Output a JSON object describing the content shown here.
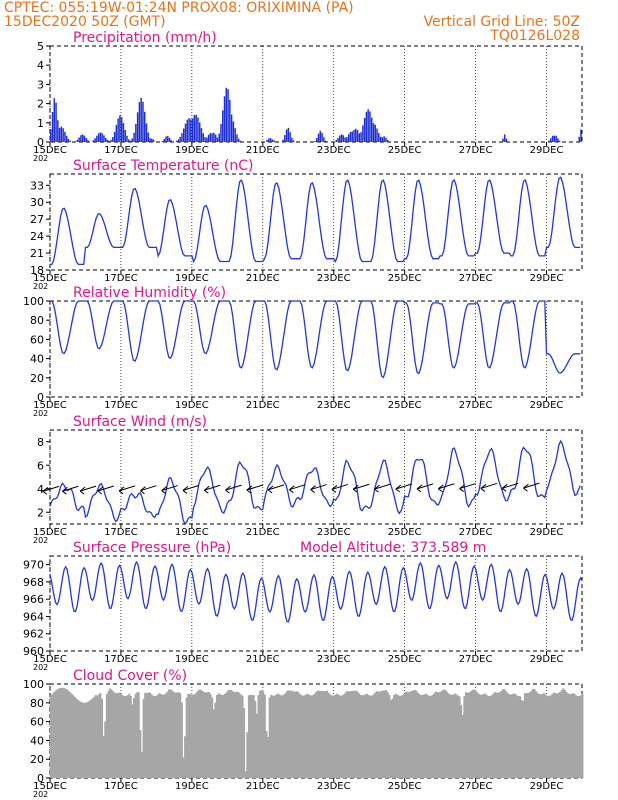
{
  "header": {
    "line1_left": "CPTEC:   055:19W-01:24N   PROX08: ORIXIMINA (PA)",
    "line2_left": "15DEC2020 50Z (GMT)",
    "line2_right": "Vertical Grid Line: 50Z",
    "line3_right": "TQ0126L028"
  },
  "colors": {
    "header": "#e8731a",
    "title": "#e0168c",
    "line": "#2437d6",
    "precip": "#1d2fd0",
    "cloud": "#a6a6a6",
    "wind_barb": "#000000"
  },
  "x_axis": {
    "ticks": [
      "15DEC",
      "17DEC",
      "19DEC",
      "21DEC",
      "23DEC",
      "25DEC",
      "27DEC",
      "29DEC"
    ],
    "tick_days": [
      0,
      2,
      4,
      6,
      8,
      10,
      12,
      14
    ],
    "year_fragment": "202",
    "total_days": 15
  },
  "chart_data": [
    {
      "id": "precip",
      "type": "bar",
      "title": "Precipitation (mm/h)",
      "ylim": [
        0,
        5
      ],
      "yticks": [
        "0",
        "1",
        "2",
        "3",
        "4",
        "5"
      ],
      "events": [
        {
          "day": 0.1,
          "peak": 2.9,
          "width": 0.15
        },
        {
          "day": 0.3,
          "peak": 0.8,
          "width": 0.25
        },
        {
          "day": 0.9,
          "peak": 0.4,
          "width": 0.2
        },
        {
          "day": 1.4,
          "peak": 0.5,
          "width": 0.25
        },
        {
          "day": 1.95,
          "peak": 1.4,
          "width": 0.25
        },
        {
          "day": 2.55,
          "peak": 2.3,
          "width": 0.25
        },
        {
          "day": 2.85,
          "peak": 0.3,
          "width": 0.1
        },
        {
          "day": 3.3,
          "peak": 0.4,
          "width": 0.15
        },
        {
          "day": 4.0,
          "peak": 2.0,
          "width": 0.35
        },
        {
          "day": 4.55,
          "peak": 0.8,
          "width": 0.2
        },
        {
          "day": 5.0,
          "peak": 3.4,
          "width": 0.25
        },
        {
          "day": 6.2,
          "peak": 0.3,
          "width": 0.15
        },
        {
          "day": 6.7,
          "peak": 0.9,
          "width": 0.15
        },
        {
          "day": 7.6,
          "peak": 0.6,
          "width": 0.15
        },
        {
          "day": 8.2,
          "peak": 0.4,
          "width": 0.2
        },
        {
          "day": 8.55,
          "peak": 1.0,
          "width": 0.25
        },
        {
          "day": 9.0,
          "peak": 2.1,
          "width": 0.3
        },
        {
          "day": 9.4,
          "peak": 0.3,
          "width": 0.15
        },
        {
          "day": 12.8,
          "peak": 0.4,
          "width": 0.08
        },
        {
          "day": 14.2,
          "peak": 0.6,
          "width": 0.15
        },
        {
          "day": 14.95,
          "peak": 0.7,
          "width": 0.08
        }
      ]
    },
    {
      "id": "temperature",
      "type": "line",
      "title": "Surface Temperature (nC)",
      "ylim": [
        18,
        35
      ],
      "yticks": [
        "18",
        "21",
        "24",
        "27",
        "30",
        "33"
      ],
      "daily_min": [
        19.0,
        22.0,
        22.0,
        20.5,
        19.5,
        19.5,
        20.0,
        20.0,
        19.5,
        19.5,
        20.0,
        20.5,
        21.0,
        20.5,
        22.0
      ],
      "daily_max": [
        29.0,
        28.0,
        32.5,
        30.5,
        29.5,
        34.0,
        33.5,
        33.5,
        34.0,
        34.0,
        34.0,
        34.0,
        34.0,
        34.0,
        34.5
      ]
    },
    {
      "id": "humidity",
      "type": "line",
      "title": "Relative Humidity (%)",
      "ylim": [
        0,
        100
      ],
      "yticks": [
        "0",
        "20",
        "40",
        "60",
        "80",
        "100"
      ],
      "daily_min": [
        45,
        50,
        37,
        40,
        45,
        30,
        28,
        30,
        27,
        20,
        24,
        30,
        30,
        30,
        25
      ],
      "daily_max": [
        100,
        100,
        100,
        100,
        100,
        100,
        100,
        100,
        100,
        100,
        98,
        97,
        98,
        100,
        45
      ]
    },
    {
      "id": "wind",
      "type": "line",
      "title": "Surface Wind (m/s)",
      "ylim": [
        1,
        9
      ],
      "yticks": [
        "2",
        "4",
        "6",
        "8"
      ],
      "daily_min": [
        2.5,
        1.8,
        2.0,
        1.5,
        2.5,
        2.5,
        3.0,
        3.0,
        2.5,
        2.5,
        3.0,
        3.0,
        3.5,
        3.5,
        4.0
      ],
      "daily_max": [
        4.5,
        4.5,
        3.8,
        5.0,
        6.0,
        6.5,
        6.0,
        6.0,
        6.5,
        6.5,
        7.0,
        7.5,
        7.5,
        7.8,
        8.0
      ],
      "barb_days": [
        0.25,
        0.8,
        1.3,
        1.8,
        2.4,
        3.0,
        3.6,
        4.2,
        4.8,
        5.4,
        6.0,
        6.6,
        7.2,
        7.8,
        8.4,
        9.0,
        9.6,
        10.2,
        10.8,
        11.4,
        12.0,
        12.6,
        13.2,
        13.8
      ]
    },
    {
      "id": "pressure",
      "type": "line",
      "title": "Surface Pressure (hPa)",
      "annotation": "Model Altitude: 373.589 m",
      "ylim": [
        960,
        971
      ],
      "yticks": [
        "960",
        "962",
        "964",
        "966",
        "968",
        "970"
      ],
      "base": 967.0,
      "semi_diurnal_amp": 2.3
    },
    {
      "id": "cloud",
      "type": "bar",
      "title": "Cloud Cover (%)",
      "ylim": [
        0,
        100
      ],
      "yticks": [
        "0",
        "20",
        "40",
        "60",
        "80",
        "100"
      ],
      "base_level": 96,
      "dips": [
        {
          "day": 1.5,
          "value": 38
        },
        {
          "day": 2.3,
          "value": 78
        },
        {
          "day": 2.55,
          "value": 18
        },
        {
          "day": 3.75,
          "value": 12
        },
        {
          "day": 4.6,
          "value": 72
        },
        {
          "day": 5.5,
          "value": 2
        },
        {
          "day": 5.8,
          "value": 68
        },
        {
          "day": 6.1,
          "value": 30
        },
        {
          "day": 9.6,
          "value": 82
        },
        {
          "day": 11.6,
          "value": 66
        },
        {
          "day": 13.3,
          "value": 80
        }
      ]
    }
  ]
}
